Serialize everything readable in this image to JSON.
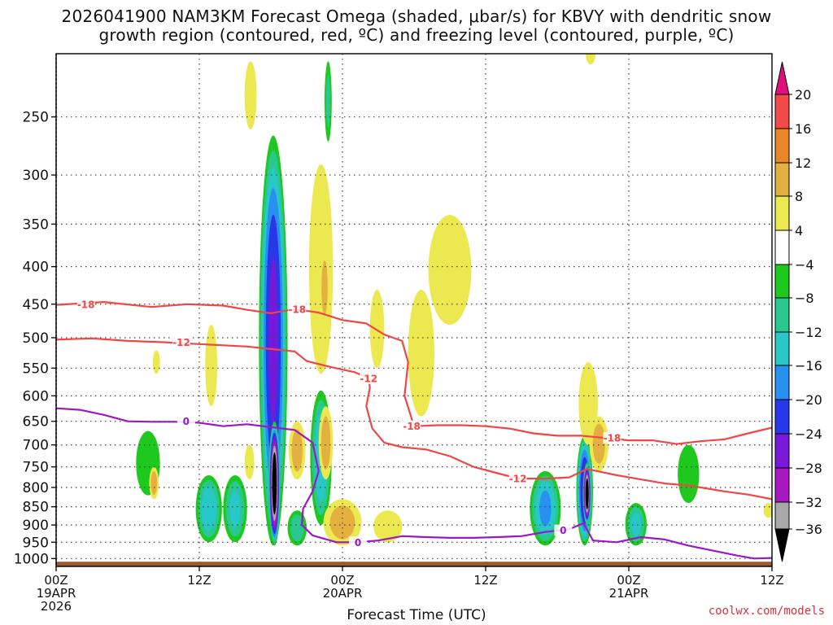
{
  "title": {
    "line1": "2026041900 NAM3KM Forecast Omega (shaded, μbar/s) for KBVY with dendritic snow",
    "line2": "growth region (contoured, red, ºC) and freezing level (contoured, purple, ºC)"
  },
  "credit": "coolwx.com/models",
  "chart_data": {
    "type": "heatmap",
    "xlabel": "Forecast Time (UTC)",
    "x_unit": "forecast hour",
    "xlim": [
      0,
      60
    ],
    "x_ticks": [
      {
        "hour": 0,
        "lines": [
          "00Z",
          "19APR",
          "2026"
        ]
      },
      {
        "hour": 12,
        "lines": [
          "12Z"
        ]
      },
      {
        "hour": 24,
        "lines": [
          "00Z",
          "20APR"
        ]
      },
      {
        "hour": 36,
        "lines": [
          "12Z"
        ]
      },
      {
        "hour": 48,
        "lines": [
          "00Z",
          "21APR"
        ]
      },
      {
        "hour": 60,
        "lines": [
          "12Z"
        ]
      }
    ],
    "y_unit": "hPa",
    "ylim": [
      1025,
      205
    ],
    "y_scale": "log",
    "y_ticks": [
      250,
      300,
      350,
      400,
      450,
      500,
      550,
      600,
      650,
      700,
      750,
      800,
      850,
      900,
      950,
      1000
    ],
    "grid": true,
    "colorbar": {
      "labels": [
        "20",
        "16",
        "12",
        "8",
        "4",
        "−4",
        "−8",
        "−12",
        "−16",
        "−20",
        "−24",
        "−28",
        "−32",
        "−36"
      ],
      "bins": [
        {
          "lo": 20,
          "hi": 24,
          "color": "#e0107a"
        },
        {
          "lo": 16,
          "hi": 20,
          "color": "#f04a4a"
        },
        {
          "lo": 12,
          "hi": 16,
          "color": "#e8862a"
        },
        {
          "lo": 8,
          "hi": 12,
          "color": "#e4b040"
        },
        {
          "lo": 4,
          "hi": 8,
          "color": "#ece850"
        },
        {
          "lo": -4,
          "hi": 4,
          "color": "#ffffff"
        },
        {
          "lo": -8,
          "hi": -4,
          "color": "#1ec81e"
        },
        {
          "lo": -12,
          "hi": -8,
          "color": "#28c890"
        },
        {
          "lo": -16,
          "hi": -12,
          "color": "#28c8c8"
        },
        {
          "lo": -20,
          "hi": -16,
          "color": "#2890f0"
        },
        {
          "lo": -24,
          "hi": -20,
          "color": "#2838e8"
        },
        {
          "lo": -28,
          "hi": -24,
          "color": "#7818d8"
        },
        {
          "lo": -32,
          "hi": -28,
          "color": "#a818c0"
        },
        {
          "lo": -36,
          "hi": -32,
          "color": "#a8a8a8"
        },
        {
          "lo": -40,
          "hi": -36,
          "color": "#000000"
        }
      ]
    },
    "omega_features": [
      {
        "hour": 7.7,
        "p_top": 670,
        "p_bot": 820,
        "half_width_h": 1.0,
        "peak": -6
      },
      {
        "hour": 12.8,
        "p_top": 770,
        "p_bot": 950,
        "half_width_h": 1.1,
        "peak": -14
      },
      {
        "hour": 15.0,
        "p_top": 770,
        "p_bot": 950,
        "half_width_h": 1.0,
        "peak": -12
      },
      {
        "hour": 18.2,
        "p_top": 265,
        "p_bot": 960,
        "half_width_h": 1.2,
        "peak": -24
      },
      {
        "hour": 18.3,
        "p_top": 650,
        "p_bot": 960,
        "half_width_h": 0.5,
        "peak": -40
      },
      {
        "hour": 22.2,
        "p_top": 590,
        "p_bot": 900,
        "half_width_h": 0.9,
        "peak": -14
      },
      {
        "hour": 20.2,
        "p_top": 860,
        "p_bot": 960,
        "half_width_h": 0.8,
        "peak": -10
      },
      {
        "hour": 22.8,
        "p_top": 210,
        "p_bot": 270,
        "half_width_h": 0.3,
        "peak": -8
      },
      {
        "hour": 41.0,
        "p_top": 760,
        "p_bot": 960,
        "half_width_h": 1.3,
        "peak": -16
      },
      {
        "hour": 44.3,
        "p_top": 680,
        "p_bot": 960,
        "half_width_h": 0.7,
        "peak": -24
      },
      {
        "hour": 44.5,
        "p_top": 740,
        "p_bot": 900,
        "half_width_h": 0.35,
        "peak": -40
      },
      {
        "hour": 48.6,
        "p_top": 840,
        "p_bot": 960,
        "half_width_h": 0.9,
        "peak": -12
      },
      {
        "hour": 53.0,
        "p_top": 700,
        "p_bot": 840,
        "half_width_h": 0.9,
        "peak": -6
      },
      {
        "hour": 16.3,
        "p_top": 210,
        "p_bot": 260,
        "half_width_h": 0.5,
        "peak": 5
      },
      {
        "hour": 22.2,
        "p_top": 290,
        "p_bot": 560,
        "half_width_h": 1.0,
        "peak": 5
      },
      {
        "hour": 22.5,
        "p_top": 380,
        "p_bot": 480,
        "half_width_h": 0.4,
        "peak": 9
      },
      {
        "hour": 33.0,
        "p_top": 340,
        "p_bot": 480,
        "half_width_h": 1.8,
        "peak": 5
      },
      {
        "hour": 30.6,
        "p_top": 430,
        "p_bot": 640,
        "half_width_h": 1.1,
        "peak": 5
      },
      {
        "hour": 26.9,
        "p_top": 430,
        "p_bot": 550,
        "half_width_h": 0.6,
        "peak": 5
      },
      {
        "hour": 13.0,
        "p_top": 480,
        "p_bot": 620,
        "half_width_h": 0.5,
        "peak": 5
      },
      {
        "hour": 8.4,
        "p_top": 520,
        "p_bot": 560,
        "half_width_h": 0.3,
        "peak": 5
      },
      {
        "hour": 22.6,
        "p_top": 620,
        "p_bot": 780,
        "half_width_h": 0.6,
        "peak": 9
      },
      {
        "hour": 16.2,
        "p_top": 700,
        "p_bot": 780,
        "half_width_h": 0.4,
        "peak": 5
      },
      {
        "hour": 20.2,
        "p_top": 650,
        "p_bot": 780,
        "half_width_h": 0.7,
        "peak": 9
      },
      {
        "hour": 24.0,
        "p_top": 830,
        "p_bot": 960,
        "half_width_h": 1.6,
        "peak": 9
      },
      {
        "hour": 27.8,
        "p_top": 860,
        "p_bot": 950,
        "half_width_h": 1.2,
        "peak": 5
      },
      {
        "hour": 8.2,
        "p_top": 750,
        "p_bot": 830,
        "half_width_h": 0.4,
        "peak": 9
      },
      {
        "hour": 44.6,
        "p_top": 540,
        "p_bot": 700,
        "half_width_h": 0.8,
        "peak": 5
      },
      {
        "hour": 45.5,
        "p_top": 640,
        "p_bot": 760,
        "half_width_h": 0.8,
        "peak": 9
      },
      {
        "hour": 44.8,
        "p_top": 200,
        "p_bot": 212,
        "half_width_h": 0.4,
        "peak": 5
      },
      {
        "hour": 59.7,
        "p_top": 840,
        "p_bot": 880,
        "half_width_h": 0.4,
        "peak": 5
      }
    ],
    "isotherms": [
      {
        "label": "-18",
        "label_points": [
          [
            2.5,
            450
          ],
          [
            20.2,
            457
          ],
          [
            29.8,
            660
          ],
          [
            46.6,
            685
          ]
        ],
        "points": [
          [
            0,
            451
          ],
          [
            4,
            447
          ],
          [
            8,
            454
          ],
          [
            11,
            450
          ],
          [
            14,
            452
          ],
          [
            16,
            458
          ],
          [
            18,
            463
          ],
          [
            20,
            457
          ],
          [
            22,
            462
          ],
          [
            24,
            473
          ],
          [
            26,
            478
          ],
          [
            27.5,
            495
          ],
          [
            29,
            505
          ],
          [
            29.5,
            540
          ],
          [
            29.2,
            600
          ],
          [
            30,
            660
          ],
          [
            32,
            658
          ],
          [
            34,
            658
          ],
          [
            36,
            660
          ],
          [
            38,
            665
          ],
          [
            40,
            675
          ],
          [
            42,
            680
          ],
          [
            44,
            680
          ],
          [
            46,
            685
          ],
          [
            48,
            690
          ],
          [
            50,
            690
          ],
          [
            52,
            698
          ],
          [
            54,
            692
          ],
          [
            56,
            688
          ],
          [
            58,
            675
          ],
          [
            60,
            663
          ]
        ]
      },
      {
        "label": "-12",
        "label_points": [
          [
            10.5,
            507
          ],
          [
            26.2,
            568
          ],
          [
            38.7,
            778
          ]
        ],
        "points": [
          [
            0,
            503
          ],
          [
            3,
            501
          ],
          [
            6,
            505
          ],
          [
            9,
            507
          ],
          [
            12,
            510
          ],
          [
            14,
            512
          ],
          [
            16,
            514
          ],
          [
            18,
            518
          ],
          [
            20,
            522
          ],
          [
            21,
            538
          ],
          [
            23,
            548
          ],
          [
            25,
            557
          ],
          [
            26.2,
            568
          ],
          [
            26.3,
            585
          ],
          [
            26.0,
            620
          ],
          [
            26.5,
            665
          ],
          [
            27.5,
            695
          ],
          [
            29,
            705
          ],
          [
            31,
            710
          ],
          [
            33,
            725
          ],
          [
            35,
            750
          ],
          [
            37,
            765
          ],
          [
            38.7,
            778
          ],
          [
            41,
            778
          ],
          [
            43,
            775
          ],
          [
            44.5,
            755
          ],
          [
            47,
            770
          ],
          [
            49,
            780
          ],
          [
            51,
            790
          ],
          [
            53,
            795
          ],
          [
            56,
            810
          ],
          [
            58,
            818
          ],
          [
            60,
            830
          ]
        ]
      }
    ],
    "freezing_level": {
      "label": "0",
      "label_points": [
        [
          10.9,
          650
        ],
        [
          25.3,
          950
        ],
        [
          42.5,
          915
        ]
      ],
      "points": [
        [
          0,
          624
        ],
        [
          2,
          627
        ],
        [
          4,
          637
        ],
        [
          6,
          650
        ],
        [
          8,
          651
        ],
        [
          10,
          651
        ],
        [
          12,
          653
        ],
        [
          14,
          660
        ],
        [
          16,
          656
        ],
        [
          18,
          662
        ],
        [
          20,
          668
        ],
        [
          21.5,
          695
        ],
        [
          22,
          760
        ],
        [
          21.5,
          810
        ],
        [
          20.7,
          855
        ],
        [
          20.6,
          900
        ],
        [
          21.5,
          930
        ],
        [
          23.5,
          950
        ],
        [
          25.3,
          950
        ],
        [
          27,
          945
        ],
        [
          29,
          932
        ],
        [
          31,
          935
        ],
        [
          33,
          937
        ],
        [
          35,
          937
        ],
        [
          37,
          935
        ],
        [
          39,
          932
        ],
        [
          41,
          920
        ],
        [
          43,
          912
        ],
        [
          44.2,
          895
        ],
        [
          45,
          945
        ],
        [
          47,
          950
        ],
        [
          49,
          935
        ],
        [
          51,
          942
        ],
        [
          53,
          960
        ],
        [
          55,
          975
        ],
        [
          57,
          990
        ],
        [
          58.5,
          1000
        ],
        [
          60,
          998
        ]
      ]
    },
    "terrain_top_hPa": 1010
  }
}
